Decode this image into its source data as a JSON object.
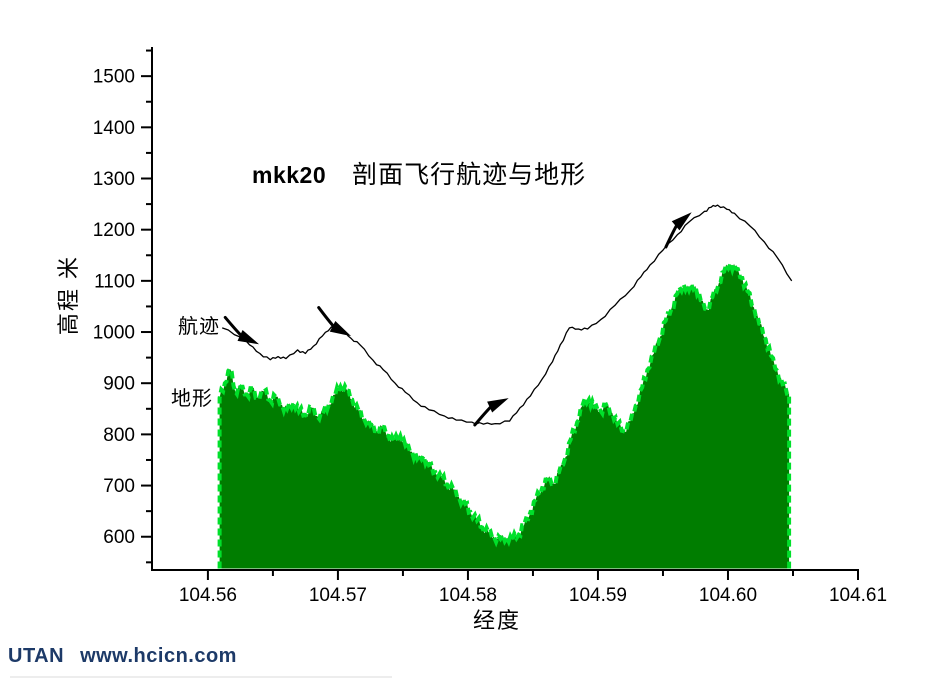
{
  "page": {
    "background": "#ffffff"
  },
  "title": {
    "prefix": "mkk20",
    "text": "剖面飞行航迹与地形"
  },
  "axis_labels": {
    "y": "高程 米",
    "x": "经度"
  },
  "series_labels": {
    "path": "航迹",
    "terrain": "地形"
  },
  "footer": {
    "brand": "UTAN",
    "site": "www.hcicn.com",
    "color": "#1d3a68"
  },
  "colors": {
    "terrain_fill": "#007d00",
    "terrain_edge": "#00e02a",
    "flight_path": "#000000",
    "axis": "#000000"
  },
  "chart_data": {
    "type": "area",
    "title": "mkk20 剖面飞行航迹与地形",
    "xlabel": "经度",
    "ylabel": "高程 米",
    "xlim": [
      104.5557,
      104.61
    ],
    "ylim": [
      535,
      1555
    ],
    "grid": false,
    "legend_position": "inline-labels",
    "x_ticks": {
      "values": [
        104.56,
        104.57,
        104.58,
        104.59,
        104.6,
        104.61
      ],
      "labels": [
        "104.56",
        "104.57",
        "104.58",
        "104.59",
        "104.60",
        "104.61"
      ],
      "minor": [
        104.565,
        104.575,
        104.585,
        104.595,
        104.605
      ]
    },
    "y_ticks": {
      "values": [
        600,
        700,
        800,
        900,
        1000,
        1100,
        1200,
        1300,
        1400,
        1500
      ],
      "labels": [
        "600",
        "700",
        "800",
        "900",
        "1000",
        "1100",
        "1200",
        "1300",
        "1400",
        "1500"
      ],
      "minor": [
        550,
        650,
        750,
        850,
        950,
        1050,
        1150,
        1250,
        1350,
        1450,
        1550
      ]
    },
    "series": [
      {
        "name": "地形",
        "type": "area",
        "fill": "#007d00",
        "stroke": "#00e02a",
        "stroke_width": 4,
        "stroke_dash": "7 4",
        "base_elevation": 538,
        "points": [
          [
            104.5609,
            871
          ],
          [
            104.5613,
            900
          ],
          [
            104.5617,
            928
          ],
          [
            104.5621,
            884
          ],
          [
            104.5625,
            893
          ],
          [
            104.563,
            878
          ],
          [
            104.5634,
            890
          ],
          [
            104.5638,
            872
          ],
          [
            104.5643,
            884
          ],
          [
            104.5648,
            866
          ],
          [
            104.5652,
            874
          ],
          [
            104.5657,
            858
          ],
          [
            104.5661,
            850
          ],
          [
            104.5666,
            862
          ],
          [
            104.567,
            845
          ],
          [
            104.5675,
            838
          ],
          [
            104.568,
            852
          ],
          [
            104.5684,
            836
          ],
          [
            104.5689,
            845
          ],
          [
            104.5693,
            858
          ],
          [
            104.5698,
            878
          ],
          [
            104.5702,
            893
          ],
          [
            104.5707,
            886
          ],
          [
            104.5711,
            868
          ],
          [
            104.5716,
            846
          ],
          [
            104.572,
            831
          ],
          [
            104.5725,
            818
          ],
          [
            104.573,
            806
          ],
          [
            104.5734,
            815
          ],
          [
            104.5739,
            797
          ],
          [
            104.5743,
            788
          ],
          [
            104.5748,
            797
          ],
          [
            104.5752,
            778
          ],
          [
            104.5757,
            766
          ],
          [
            104.5761,
            752
          ],
          [
            104.5766,
            758
          ],
          [
            104.577,
            740
          ],
          [
            104.5775,
            726
          ],
          [
            104.578,
            714
          ],
          [
            104.5784,
            702
          ],
          [
            104.5789,
            692
          ],
          [
            104.5793,
            678
          ],
          [
            104.5798,
            664
          ],
          [
            104.5802,
            648
          ],
          [
            104.5807,
            632
          ],
          [
            104.5811,
            618
          ],
          [
            104.5816,
            608
          ],
          [
            104.582,
            600
          ],
          [
            104.5825,
            596
          ],
          [
            104.583,
            598
          ],
          [
            104.5834,
            594
          ],
          [
            104.5839,
            604
          ],
          [
            104.5843,
            622
          ],
          [
            104.5848,
            648
          ],
          [
            104.5852,
            672
          ],
          [
            104.5857,
            695
          ],
          [
            104.5861,
            712
          ],
          [
            104.5866,
            704
          ],
          [
            104.587,
            726
          ],
          [
            104.5875,
            756
          ],
          [
            104.5879,
            790
          ],
          [
            104.5884,
            824
          ],
          [
            104.5888,
            856
          ],
          [
            104.5893,
            868
          ],
          [
            104.5897,
            854
          ],
          [
            104.5902,
            846
          ],
          [
            104.5906,
            858
          ],
          [
            104.5911,
            842
          ],
          [
            104.5915,
            820
          ],
          [
            104.592,
            806
          ],
          [
            104.5925,
            826
          ],
          [
            104.5929,
            856
          ],
          [
            104.5934,
            892
          ],
          [
            104.5938,
            926
          ],
          [
            104.5943,
            958
          ],
          [
            104.5948,
            992
          ],
          [
            104.5952,
            1022
          ],
          [
            104.5957,
            1050
          ],
          [
            104.5961,
            1075
          ],
          [
            104.5966,
            1092
          ],
          [
            104.597,
            1082
          ],
          [
            104.5975,
            1090
          ],
          [
            104.5979,
            1062
          ],
          [
            104.5984,
            1044
          ],
          [
            104.5988,
            1068
          ],
          [
            104.5993,
            1096
          ],
          [
            104.5997,
            1118
          ],
          [
            104.6002,
            1133
          ],
          [
            104.6006,
            1124
          ],
          [
            104.6011,
            1106
          ],
          [
            104.6015,
            1080
          ],
          [
            104.602,
            1048
          ],
          [
            104.6024,
            1016
          ],
          [
            104.6029,
            986
          ],
          [
            104.6033,
            954
          ],
          [
            104.6038,
            924
          ],
          [
            104.6042,
            898
          ],
          [
            104.6047,
            880
          ]
        ]
      },
      {
        "name": "航迹",
        "type": "line",
        "stroke": "#000000",
        "stroke_width": 1.3,
        "points": [
          [
            104.5611,
            1008
          ],
          [
            104.5625,
            990
          ],
          [
            104.5632,
            975
          ],
          [
            104.564,
            958
          ],
          [
            104.5648,
            946
          ],
          [
            104.5654,
            952
          ],
          [
            104.566,
            948
          ],
          [
            104.5669,
            965
          ],
          [
            104.5675,
            958
          ],
          [
            104.5681,
            972
          ],
          [
            104.5688,
            992
          ],
          [
            104.5695,
            1010
          ],
          [
            104.5703,
            1005
          ],
          [
            104.571,
            988
          ],
          [
            104.5717,
            975
          ],
          [
            104.5727,
            945
          ],
          [
            104.5735,
            926
          ],
          [
            104.5744,
            900
          ],
          [
            104.5752,
            882
          ],
          [
            104.5761,
            862
          ],
          [
            104.577,
            848
          ],
          [
            104.5782,
            836
          ],
          [
            104.5791,
            828
          ],
          [
            104.5803,
            824
          ],
          [
            104.5812,
            820
          ],
          [
            104.5821,
            821
          ],
          [
            104.5832,
            826
          ],
          [
            104.584,
            852
          ],
          [
            104.5848,
            875
          ],
          [
            104.5857,
            908
          ],
          [
            104.5865,
            942
          ],
          [
            104.5871,
            975
          ],
          [
            104.5878,
            1008
          ],
          [
            104.5885,
            1006
          ],
          [
            104.5892,
            1006
          ],
          [
            104.5902,
            1024
          ],
          [
            104.5913,
            1052
          ],
          [
            104.5925,
            1082
          ],
          [
            104.5933,
            1108
          ],
          [
            104.594,
            1131
          ],
          [
            104.595,
            1160
          ],
          [
            104.5961,
            1190
          ],
          [
            104.597,
            1215
          ],
          [
            104.5982,
            1236
          ],
          [
            104.5987,
            1244
          ],
          [
            104.5992,
            1248
          ],
          [
            104.5999,
            1240
          ],
          [
            104.6005,
            1232
          ],
          [
            104.6017,
            1207
          ],
          [
            104.6028,
            1176
          ],
          [
            104.6038,
            1145
          ],
          [
            104.6049,
            1100
          ]
        ]
      }
    ],
    "arrows": [
      {
        "lon": 104.5631,
        "elev": 986,
        "angle": 25,
        "curve": -1
      },
      {
        "lon": 104.5702,
        "elev": 1003,
        "angle": 28,
        "curve": -1
      },
      {
        "lon": 104.5823,
        "elev": 861,
        "angle": -25,
        "curve": 1
      },
      {
        "lon": 104.5965,
        "elev": 1219,
        "angle": -40,
        "curve": 1
      }
    ]
  }
}
